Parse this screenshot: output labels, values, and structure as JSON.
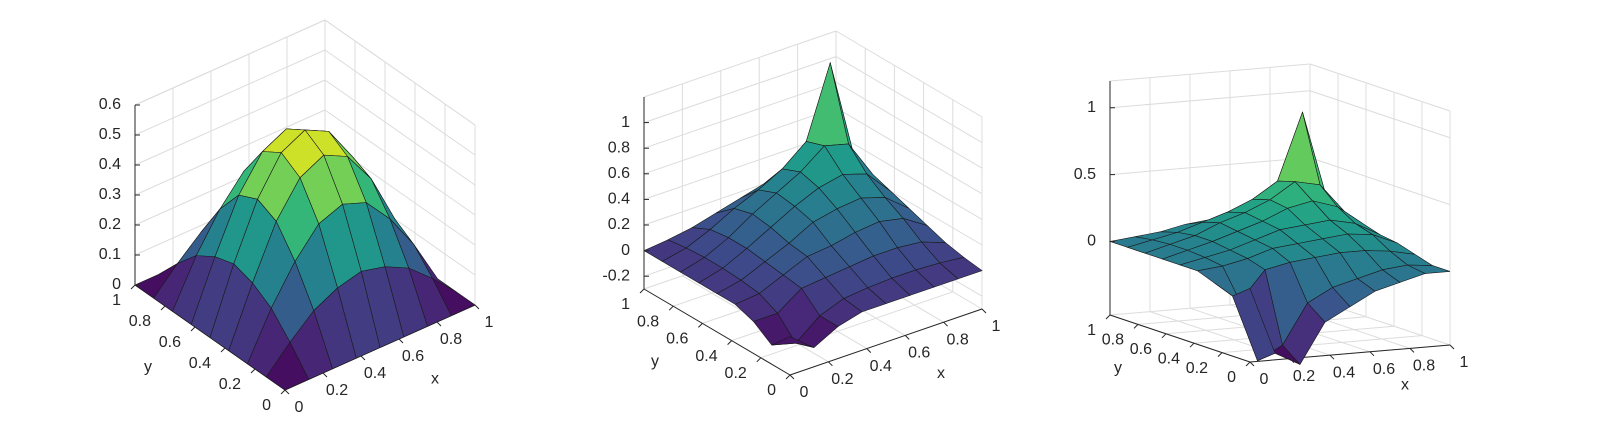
{
  "chart_data": [
    {
      "type": "surface",
      "xlabel": "x",
      "ylabel": "y",
      "colormap": [
        "#440154",
        "#482878",
        "#3e4989",
        "#31688e",
        "#26828e",
        "#1f9e89",
        "#35b779",
        "#6ece58",
        "#b5de2b",
        "#fde725"
      ],
      "xlim": [
        0,
        1
      ],
      "ylim": [
        0,
        1
      ],
      "zlim": [
        0,
        0.6
      ],
      "xticks": [
        0,
        0.2,
        0.4,
        0.6,
        0.8,
        1
      ],
      "yticks": [
        0,
        0.2,
        0.4,
        0.6,
        0.8,
        1
      ],
      "zticks": [
        0,
        0.1,
        0.2,
        0.3,
        0.4,
        0.5,
        0.6
      ],
      "grid": true,
      "x": [
        0,
        0.125,
        0.25,
        0.375,
        0.5,
        0.625,
        0.75,
        0.875,
        1
      ],
      "y": [
        0,
        0.125,
        0.25,
        0.375,
        0.5,
        0.625,
        0.75,
        0.875,
        1
      ],
      "z": [
        [
          0,
          0,
          0,
          0,
          0,
          0,
          0,
          0,
          0
        ],
        [
          0,
          0.08,
          0.15,
          0.19,
          0.21,
          0.19,
          0.15,
          0.08,
          0
        ],
        [
          0,
          0.15,
          0.27,
          0.36,
          0.39,
          0.36,
          0.27,
          0.15,
          0
        ],
        [
          0,
          0.19,
          0.36,
          0.47,
          0.51,
          0.47,
          0.36,
          0.19,
          0
        ],
        [
          0,
          0.21,
          0.39,
          0.51,
          0.55,
          0.51,
          0.39,
          0.21,
          0
        ],
        [
          0,
          0.19,
          0.36,
          0.47,
          0.51,
          0.47,
          0.36,
          0.19,
          0
        ],
        [
          0,
          0.15,
          0.27,
          0.36,
          0.39,
          0.36,
          0.27,
          0.15,
          0
        ],
        [
          0,
          0.08,
          0.15,
          0.19,
          0.21,
          0.19,
          0.15,
          0.08,
          0
        ],
        [
          0,
          0,
          0,
          0,
          0,
          0,
          0,
          0,
          0
        ]
      ]
    },
    {
      "type": "surface",
      "xlabel": "x",
      "ylabel": "y",
      "colormap": [
        "#440154",
        "#482878",
        "#3e4989",
        "#31688e",
        "#26828e",
        "#1f9e89",
        "#35b779",
        "#6ece58",
        "#b5de2b",
        "#fde725"
      ],
      "xlim": [
        0,
        1
      ],
      "ylim": [
        0,
        1
      ],
      "zlim": [
        -0.3,
        1.2
      ],
      "xticks": [
        0,
        0.2,
        0.4,
        0.6,
        0.8,
        1
      ],
      "yticks": [
        0,
        0.2,
        0.4,
        0.6,
        0.8,
        1
      ],
      "zticks": [
        -0.2,
        0,
        0.2,
        0.4,
        0.6,
        0.8,
        1
      ],
      "grid": true,
      "x": [
        0,
        0.125,
        0.25,
        0.375,
        0.5,
        0.625,
        0.75,
        0.875,
        1
      ],
      "y": [
        0,
        0.125,
        0.25,
        0.375,
        0.5,
        0.625,
        0.75,
        0.875,
        1
      ],
      "z": [
        [
          0,
          -0.15,
          -0.05,
          0,
          0,
          0,
          0,
          0,
          0
        ],
        [
          -0.15,
          -0.2,
          -0.05,
          0.02,
          0.04,
          0.05,
          0.05,
          0.04,
          0.02
        ],
        [
          -0.05,
          -0.05,
          0.08,
          0.1,
          0.12,
          0.14,
          0.14,
          0.12,
          0.05
        ],
        [
          0,
          0.02,
          0.1,
          0.18,
          0.2,
          0.24,
          0.26,
          0.22,
          0.1
        ],
        [
          0,
          0.04,
          0.12,
          0.2,
          0.3,
          0.34,
          0.36,
          0.3,
          0.15
        ],
        [
          0,
          0.05,
          0.14,
          0.24,
          0.34,
          0.42,
          0.46,
          0.4,
          0.2
        ],
        [
          0,
          0.05,
          0.14,
          0.26,
          0.36,
          0.46,
          0.6,
          0.55,
          0.25
        ],
        [
          0,
          0.04,
          0.12,
          0.22,
          0.3,
          0.4,
          0.55,
          1.1,
          0.3
        ],
        [
          0,
          0.02,
          0.05,
          0.1,
          0.15,
          0.2,
          0.25,
          0.3,
          0.3
        ]
      ]
    },
    {
      "type": "surface",
      "xlabel": "x",
      "ylabel": "y",
      "colormap": [
        "#440154",
        "#482878",
        "#3e4989",
        "#31688e",
        "#26828e",
        "#1f9e89",
        "#35b779",
        "#6ece58",
        "#b5de2b",
        "#fde725"
      ],
      "xlim": [
        0,
        1
      ],
      "ylim": [
        0,
        1
      ],
      "zlim": [
        -0.55,
        1.2
      ],
      "xticks": [
        0,
        0.2,
        0.4,
        0.6,
        0.8,
        1
      ],
      "yticks": [
        0,
        0.2,
        0.4,
        0.6,
        0.8,
        1
      ],
      "zticks": [
        0,
        0.5,
        1
      ],
      "grid": true,
      "x": [
        0,
        0.125,
        0.25,
        0.375,
        0.5,
        0.625,
        0.75,
        0.875,
        1
      ],
      "y": [
        0,
        0.125,
        0.25,
        0.375,
        0.5,
        0.625,
        0.75,
        0.875,
        1
      ],
      "z": [
        [
          0,
          -0.5,
          -0.6,
          -0.3,
          -0.2,
          -0.1,
          -0.05,
          0,
          0
        ],
        [
          -0.1,
          -0.6,
          -0.5,
          -0.2,
          -0.1,
          -0.05,
          0,
          0.02,
          0
        ],
        [
          -0.05,
          -0.2,
          0.02,
          0.06,
          0.08,
          0.1,
          0.1,
          0.08,
          0.04
        ],
        [
          0,
          0.02,
          0.06,
          0.12,
          0.14,
          0.16,
          0.18,
          0.16,
          0.08
        ],
        [
          0,
          0.04,
          0.08,
          0.14,
          0.2,
          0.22,
          0.24,
          0.2,
          0.1
        ],
        [
          0,
          0.05,
          0.1,
          0.16,
          0.22,
          0.3,
          0.34,
          0.28,
          0.14
        ],
        [
          0,
          0.05,
          0.1,
          0.18,
          0.24,
          0.32,
          0.44,
          0.4,
          0.18
        ],
        [
          0,
          0.04,
          0.08,
          0.14,
          0.2,
          0.28,
          0.4,
          0.9,
          0.22
        ],
        [
          0,
          0.02,
          0.04,
          0.08,
          0.1,
          0.14,
          0.18,
          0.22,
          0.2
        ]
      ]
    }
  ]
}
